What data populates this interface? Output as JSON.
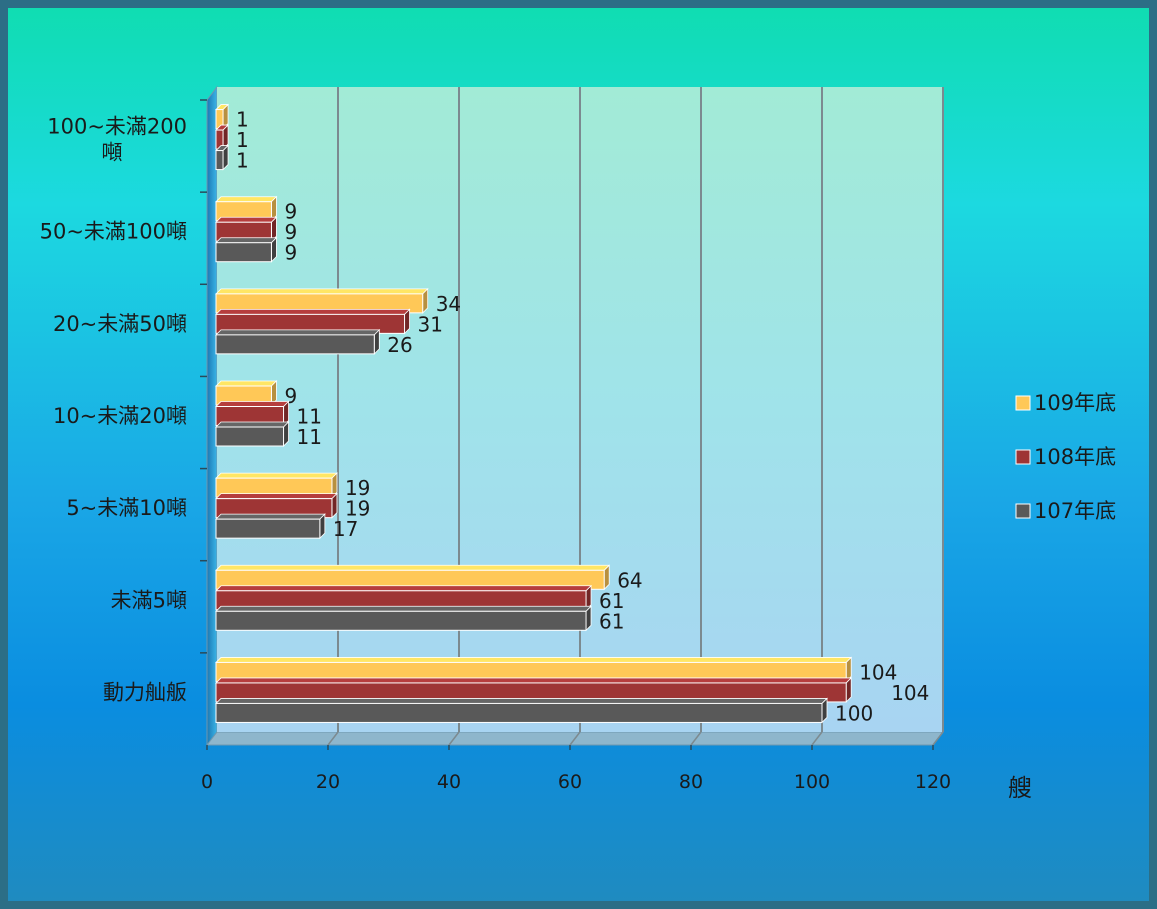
{
  "chart_data": {
    "type": "bar",
    "orientation": "horizontal",
    "categories": [
      "100~未滿200噸",
      "50~未滿100噸",
      "20~未滿50噸",
      "10~未滿20噸",
      "5~未滿10噸",
      "未滿5噸",
      "動力舢舨"
    ],
    "category_lines": [
      [
        "100~未滿200",
        "噸"
      ],
      [
        "50~未滿100噸"
      ],
      [
        "20~未滿50噸"
      ],
      [
        "10~未滿20噸"
      ],
      [
        "5~未滿10噸"
      ],
      [
        "未滿5噸"
      ],
      [
        "動力舢舨"
      ]
    ],
    "series": [
      {
        "name": "109年底",
        "color": "#FFC857",
        "values": [
          1,
          9,
          34,
          9,
          19,
          64,
          104
        ]
      },
      {
        "name": "108年底",
        "color": "#9E3535",
        "values": [
          1,
          9,
          31,
          11,
          19,
          61,
          104
        ]
      },
      {
        "name": "107年底",
        "color": "#595959",
        "values": [
          1,
          9,
          26,
          11,
          17,
          61,
          100
        ]
      }
    ],
    "xlim": [
      0,
      120
    ],
    "xticks": [
      0,
      20,
      40,
      60,
      80,
      100,
      120
    ],
    "xlabel": "艘",
    "ylabel": "",
    "title": "",
    "grid": true,
    "legend_position": "right"
  }
}
